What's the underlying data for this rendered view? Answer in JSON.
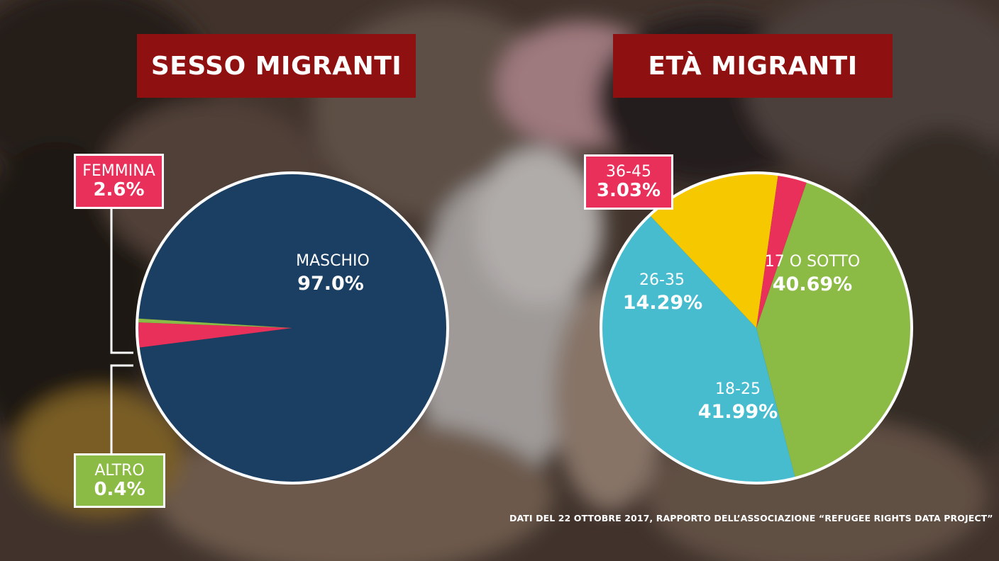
{
  "titles": {
    "left": "SESSO MIGRANTI",
    "right": "ETÀ MIGRANTI"
  },
  "footnote": "DATI DEL 22 OTTOBRE 2017, RAPPORTO DELL’ASSOCIAZIONE “REFUGEE RIGHTS DATA PROJECT”",
  "colors": {
    "title_bg": "#8f1010",
    "navy": "#1a3f63",
    "pink": "#e8305a",
    "green": "#8cbb45",
    "cyan": "#47bccf",
    "yellow": "#f6c800"
  },
  "chart_data": [
    {
      "type": "pie",
      "title": "SESSO MIGRANTI",
      "slices": [
        {
          "label": "MASCHIO",
          "value": 97.0,
          "value_text": "97.0%",
          "color": "#1a3f63"
        },
        {
          "label": "FEMMINA",
          "value": 2.6,
          "value_text": "2.6%",
          "color": "#e8305a"
        },
        {
          "label": "ALTRO",
          "value": 0.4,
          "value_text": "0.4%",
          "color": "#8cbb45"
        }
      ]
    },
    {
      "type": "pie",
      "title": "ETÀ MIGRANTI",
      "slices": [
        {
          "label": "17 O SOTTO",
          "value": 40.69,
          "value_text": "40.69%",
          "color": "#8cbb45"
        },
        {
          "label": "18-25",
          "value": 41.99,
          "value_text": "41.99%",
          "color": "#47bccf"
        },
        {
          "label": "26-35",
          "value": 14.29,
          "value_text": "14.29%",
          "color": "#f6c800"
        },
        {
          "label": "36-45",
          "value": 3.03,
          "value_text": "3.03%",
          "color": "#e8305a"
        }
      ]
    }
  ]
}
